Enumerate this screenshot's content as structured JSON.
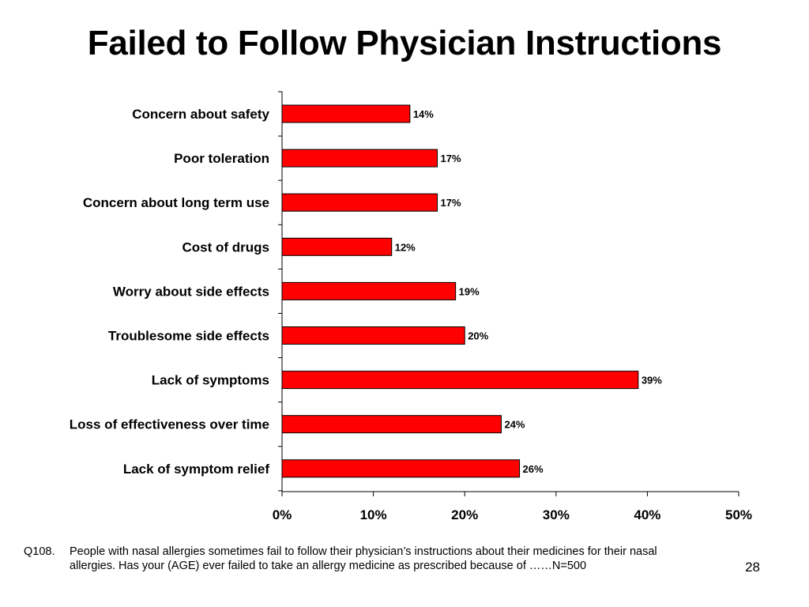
{
  "slide": {
    "title": "Failed to Follow Physician Instructions",
    "question_id": "Q108.",
    "question_text": "People with nasal allergies sometimes fail to follow their physician’s instructions about their medicines for their nasal allergies.  Has your (AGE) ever failed to take an allergy medicine as prescribed because of ……N=500",
    "page_number": "28"
  },
  "chart_data": {
    "type": "bar",
    "orientation": "horizontal",
    "categories": [
      "Concern about safety",
      "Poor toleration",
      "Concern about long term use",
      "Cost of drugs",
      "Worry about side effects",
      "Troublesome side effects",
      "Lack of symptoms",
      "Loss of effectiveness over time",
      "Lack of symptom relief"
    ],
    "values": [
      14,
      17,
      17,
      12,
      19,
      20,
      39,
      24,
      26
    ],
    "data_labels": [
      "14%",
      "17%",
      "17%",
      "12%",
      "19%",
      "20%",
      "39%",
      "24%",
      "26%"
    ],
    "xlim": [
      0,
      50
    ],
    "x_ticks": [
      0,
      10,
      20,
      30,
      40,
      50
    ],
    "x_tick_labels": [
      "0%",
      "10%",
      "20%",
      "30%",
      "40%",
      "50%"
    ],
    "xlabel": "",
    "ylabel": "",
    "grid": false,
    "legend": "none",
    "colors": {
      "bar_fill": "#ff0000",
      "bar_stroke": "#000000",
      "axis": "#000000"
    }
  }
}
